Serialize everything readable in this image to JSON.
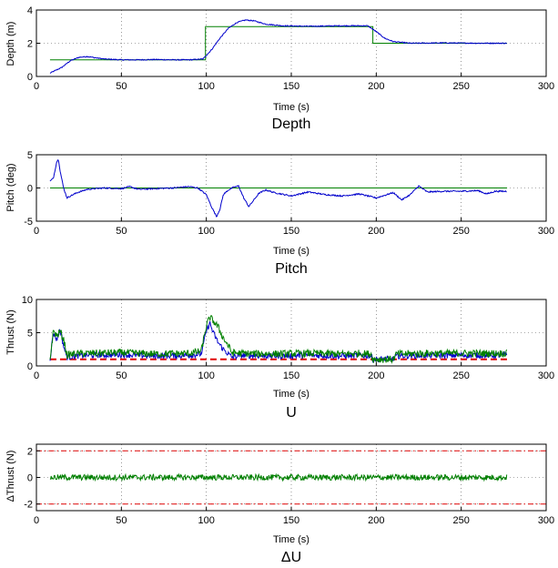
{
  "colors": {
    "reference": "#008000",
    "measured": "#0000cc",
    "limit": "#e00000",
    "axis": "#000000",
    "grid": "#555555"
  },
  "chart_data": [
    {
      "type": "line",
      "title": "Depth",
      "xlabel": "Time (s)",
      "ylabel": "Depth (m)",
      "xlim": [
        0,
        300
      ],
      "ylim": [
        0,
        4
      ],
      "xticks": [
        0,
        50,
        100,
        150,
        200,
        250,
        300
      ],
      "yticks": [
        0,
        2,
        4
      ],
      "grid": true,
      "series": [
        {
          "role": "reference",
          "color": "#008000",
          "x": [
            8,
            99.5,
            99.5,
            198,
            198,
            277
          ],
          "y": [
            1,
            1,
            3,
            3,
            2,
            2
          ]
        },
        {
          "role": "measured",
          "color": "#0000cc",
          "x": [
            8,
            15,
            20,
            25,
            30,
            35,
            40,
            50,
            60,
            70,
            80,
            90,
            98,
            103,
            108,
            113,
            118,
            123,
            128,
            135,
            145,
            160,
            180,
            195,
            200,
            205,
            210,
            220,
            240,
            260,
            277
          ],
          "y": [
            0.2,
            0.55,
            0.95,
            1.15,
            1.2,
            1.12,
            1.05,
            1.0,
            1.0,
            1.02,
            1.0,
            1.0,
            1.05,
            1.6,
            2.3,
            2.9,
            3.25,
            3.4,
            3.35,
            3.15,
            3.05,
            3.02,
            3.05,
            3.05,
            2.7,
            2.3,
            2.1,
            2.0,
            2.02,
            2.0,
            2.0
          ],
          "noise": 0.03
        }
      ]
    },
    {
      "type": "line",
      "title": "Pitch",
      "xlabel": "Time (s)",
      "ylabel": "Pitch (deg)",
      "xlim": [
        0,
        300
      ],
      "ylim": [
        -5,
        5
      ],
      "xticks": [
        0,
        50,
        100,
        150,
        200,
        250,
        300
      ],
      "yticks": [
        -5,
        0,
        5
      ],
      "grid": true,
      "series": [
        {
          "role": "reference",
          "color": "#008000",
          "x": [
            8,
            277
          ],
          "y": [
            0,
            0
          ]
        },
        {
          "role": "measured",
          "color": "#0000cc",
          "x": [
            8,
            10,
            12,
            13,
            14,
            16,
            18,
            20,
            24,
            30,
            40,
            50,
            55,
            60,
            70,
            80,
            90,
            95,
            100,
            103,
            106,
            108,
            110,
            113,
            116,
            119,
            122,
            125,
            128,
            131,
            135,
            140,
            150,
            160,
            170,
            180,
            190,
            200,
            205,
            210,
            215,
            220,
            225,
            230,
            240,
            250,
            260,
            265,
            270,
            277
          ],
          "y": [
            1.0,
            1.5,
            4.0,
            4.3,
            2.5,
            0.0,
            -1.5,
            -1.2,
            -0.7,
            -0.2,
            0.0,
            -0.1,
            0.2,
            -0.2,
            -0.1,
            0.0,
            0.2,
            0.0,
            -1.0,
            -2.8,
            -4.3,
            -3.2,
            -1.0,
            -0.3,
            0.1,
            0.3,
            -1.5,
            -2.8,
            -1.8,
            -0.8,
            -0.3,
            -0.7,
            -1.2,
            -0.6,
            -1.0,
            -1.2,
            -0.9,
            -1.5,
            -1.1,
            -0.7,
            -1.8,
            -1.0,
            0.3,
            -0.6,
            -0.5,
            -0.5,
            -0.4,
            -0.9,
            -0.5,
            -0.5
          ],
          "noise": 0.1
        }
      ]
    },
    {
      "type": "line",
      "title": "U",
      "xlabel": "Time (s)",
      "ylabel": "Thrust (N)",
      "xlim": [
        0,
        300
      ],
      "ylim": [
        0,
        10
      ],
      "xticks": [
        0,
        50,
        100,
        150,
        200,
        250,
        300
      ],
      "yticks": [
        0,
        5,
        10
      ],
      "grid": true,
      "series": [
        {
          "role": "limit",
          "style": "dashdot",
          "color": "#e00000",
          "x": [
            0,
            300
          ],
          "y": [
            10,
            10
          ]
        },
        {
          "role": "limit",
          "style": "dashed",
          "color": "#e00000",
          "x": [
            8,
            277
          ],
          "y": [
            1,
            1
          ]
        },
        {
          "role": "measured",
          "color": "#0000cc",
          "x": [
            8,
            10,
            12,
            14,
            16,
            18,
            22,
            30,
            50,
            70,
            90,
            97,
            100,
            102,
            104,
            107,
            110,
            113,
            115,
            120,
            140,
            160,
            180,
            190,
            197,
            198,
            199,
            210,
            212,
            230,
            250,
            270,
            277
          ],
          "y": [
            1,
            5.0,
            4.0,
            5.5,
            3.0,
            1.3,
            1.5,
            1.6,
            1.7,
            1.5,
            1.6,
            1.8,
            5.2,
            6.5,
            5.0,
            3.5,
            2.5,
            1.8,
            1.3,
            1.6,
            1.5,
            1.6,
            1.5,
            1.6,
            1.5,
            1.0,
            1.0,
            1.0,
            1.5,
            1.6,
            1.6,
            1.6,
            1.6
          ],
          "noise": 0.45
        },
        {
          "role": "measured-2",
          "color": "#008000",
          "x": [
            8,
            10,
            12,
            14,
            16,
            18,
            22,
            30,
            50,
            70,
            90,
            97,
            100,
            102,
            104,
            107,
            110,
            113,
            115,
            120,
            140,
            160,
            180,
            190,
            197,
            198,
            199,
            210,
            212,
            230,
            250,
            270,
            277
          ],
          "y": [
            1,
            5.3,
            4.5,
            5.2,
            4.0,
            1.6,
            1.8,
            1.9,
            2.0,
            1.8,
            1.9,
            2.2,
            6.0,
            7.3,
            6.8,
            5.8,
            4.2,
            3.0,
            2.0,
            1.9,
            1.8,
            1.9,
            1.8,
            1.9,
            1.8,
            1.0,
            1.0,
            1.0,
            1.8,
            1.9,
            1.9,
            1.9,
            1.9
          ],
          "noise": 0.55
        }
      ]
    },
    {
      "type": "line",
      "title": "ΔU",
      "xlabel": "Time (s)",
      "ylabel": "ΔThrust (N)",
      "xlim": [
        0,
        300
      ],
      "ylim": [
        -2.5,
        2.5
      ],
      "xticks": [
        0,
        50,
        100,
        150,
        200,
        250,
        300
      ],
      "yticks": [
        -2,
        0,
        2
      ],
      "grid": true,
      "series": [
        {
          "role": "limit",
          "style": "dashdot",
          "color": "#e00000",
          "x": [
            0,
            300
          ],
          "y": [
            2,
            2
          ]
        },
        {
          "role": "limit",
          "style": "dashdot",
          "color": "#e00000",
          "x": [
            0,
            300
          ],
          "y": [
            -2,
            -2
          ]
        },
        {
          "role": "measured",
          "color": "#008000",
          "x": [
            8,
            277
          ],
          "y": [
            0,
            0
          ],
          "noise": 0.22
        }
      ]
    }
  ]
}
